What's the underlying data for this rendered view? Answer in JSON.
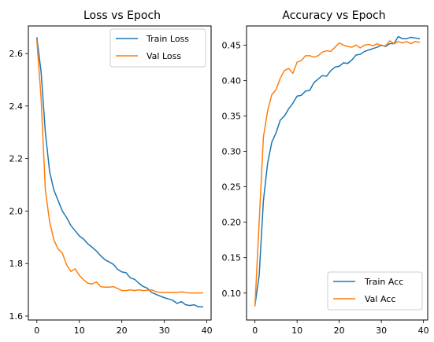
{
  "colors": {
    "train": "#1f77b4",
    "val": "#ff7f0e",
    "axis": "#000000",
    "legend_border": "#cccccc"
  },
  "chart_data": [
    {
      "type": "line",
      "title": "Loss vs Epoch",
      "xlabel": "",
      "ylabel": "",
      "xlim": [
        -2,
        41
      ],
      "ylim": [
        1.585,
        2.705
      ],
      "xticks": [
        0,
        10,
        20,
        30,
        40
      ],
      "xtick_labels": [
        "0",
        "10",
        "20",
        "30",
        "40"
      ],
      "yticks": [
        1.6,
        1.8,
        2.0,
        2.2,
        2.4,
        2.6
      ],
      "ytick_labels": [
        "1.6",
        "1.8",
        "2.0",
        "2.2",
        "2.4",
        "2.6"
      ],
      "grid": false,
      "legend": "top-right",
      "x": [
        0,
        1,
        2,
        3,
        4,
        5,
        6,
        7,
        8,
        9,
        10,
        11,
        12,
        13,
        14,
        15,
        16,
        17,
        18,
        19,
        20,
        21,
        22,
        23,
        24,
        25,
        26,
        27,
        28,
        29,
        30,
        31,
        32,
        33,
        34,
        35,
        36,
        37,
        38,
        39
      ],
      "series": [
        {
          "name": "Train Loss",
          "color_key": "train",
          "values": [
            2.66,
            2.53,
            2.3,
            2.15,
            2.08,
            2.04,
            2.0,
            1.975,
            1.945,
            1.925,
            1.905,
            1.893,
            1.875,
            1.862,
            1.848,
            1.83,
            1.815,
            1.806,
            1.797,
            1.778,
            1.768,
            1.765,
            1.745,
            1.74,
            1.725,
            1.713,
            1.706,
            1.69,
            1.683,
            1.676,
            1.67,
            1.665,
            1.66,
            1.648,
            1.655,
            1.643,
            1.64,
            1.643,
            1.635,
            1.635
          ]
        },
        {
          "name": "Val Loss",
          "color_key": "val",
          "values": [
            2.65,
            2.43,
            2.08,
            1.96,
            1.89,
            1.855,
            1.84,
            1.795,
            1.77,
            1.78,
            1.755,
            1.738,
            1.725,
            1.722,
            1.73,
            1.712,
            1.71,
            1.71,
            1.712,
            1.705,
            1.697,
            1.697,
            1.7,
            1.697,
            1.7,
            1.697,
            1.698,
            1.7,
            1.693,
            1.69,
            1.69,
            1.69,
            1.69,
            1.69,
            1.692,
            1.69,
            1.688,
            1.688,
            1.688,
            1.688
          ]
        }
      ]
    },
    {
      "type": "line",
      "title": "Accuracy vs Epoch",
      "xlabel": "",
      "ylabel": "",
      "xlim": [
        -2,
        41
      ],
      "ylim": [
        0.062,
        0.477
      ],
      "xticks": [
        0,
        10,
        20,
        30,
        40
      ],
      "xtick_labels": [
        "0",
        "10",
        "20",
        "30",
        "40"
      ],
      "yticks": [
        0.1,
        0.15,
        0.2,
        0.25,
        0.3,
        0.35,
        0.4,
        0.45
      ],
      "ytick_labels": [
        "0.10",
        "0.15",
        "0.20",
        "0.25",
        "0.30",
        "0.35",
        "0.40",
        "0.45"
      ],
      "grid": false,
      "legend": "bottom-right",
      "x": [
        0,
        1,
        2,
        3,
        4,
        5,
        6,
        7,
        8,
        9,
        10,
        11,
        12,
        13,
        14,
        15,
        16,
        17,
        18,
        19,
        20,
        21,
        22,
        23,
        24,
        25,
        26,
        27,
        28,
        29,
        30,
        31,
        32,
        33,
        34,
        35,
        36,
        37,
        38,
        39
      ],
      "series": [
        {
          "name": "Train Acc",
          "color_key": "train",
          "values": [
            0.083,
            0.125,
            0.23,
            0.283,
            0.313,
            0.326,
            0.344,
            0.35,
            0.36,
            0.368,
            0.378,
            0.379,
            0.385,
            0.386,
            0.397,
            0.402,
            0.407,
            0.406,
            0.414,
            0.419,
            0.42,
            0.425,
            0.424,
            0.429,
            0.436,
            0.437,
            0.441,
            0.443,
            0.445,
            0.447,
            0.45,
            0.448,
            0.452,
            0.452,
            0.462,
            0.459,
            0.459,
            0.461,
            0.46,
            0.459
          ]
        },
        {
          "name": "Val Acc",
          "color_key": "val",
          "values": [
            0.082,
            0.2,
            0.32,
            0.357,
            0.38,
            0.387,
            0.403,
            0.414,
            0.417,
            0.41,
            0.426,
            0.428,
            0.435,
            0.435,
            0.433,
            0.435,
            0.44,
            0.442,
            0.441,
            0.447,
            0.453,
            0.45,
            0.448,
            0.447,
            0.45,
            0.446,
            0.45,
            0.451,
            0.449,
            0.452,
            0.449,
            0.449,
            0.456,
            0.452,
            0.455,
            0.453,
            0.455,
            0.452,
            0.455,
            0.454
          ]
        }
      ]
    }
  ]
}
